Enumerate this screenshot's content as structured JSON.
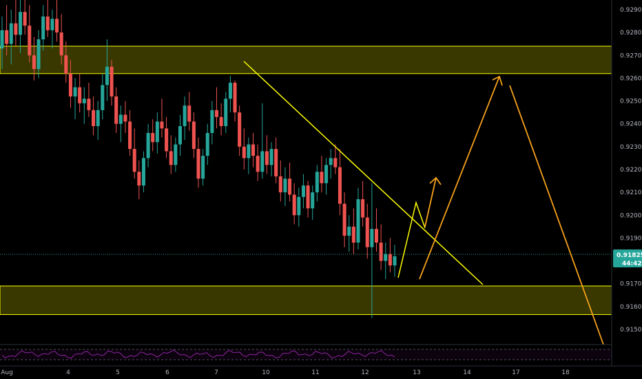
{
  "chart_data": {
    "type": "candlestick",
    "instrument_price_axis": {
      "ticks": [
        "0.92900",
        "0.92800",
        "0.92700",
        "0.92600",
        "0.92500",
        "0.92400",
        "0.92300",
        "0.92200",
        "0.92100",
        "0.92000",
        "0.91900",
        "0.91700",
        "0.91600",
        "0.91500"
      ],
      "tick_values": [
        0.929,
        0.928,
        0.927,
        0.926,
        0.925,
        0.924,
        0.923,
        0.922,
        0.921,
        0.92,
        0.919,
        0.917,
        0.916,
        0.915
      ],
      "range": [
        0.9142,
        0.92965
      ]
    },
    "time_axis": {
      "ticks": [
        "Aug",
        "4",
        "5",
        "6",
        "7",
        "10",
        "11",
        "12",
        "13",
        "14",
        "17",
        "18"
      ]
    },
    "current_price": {
      "label": "0.91825",
      "value": 0.91825,
      "countdown": "44:42",
      "color": "#26a69a"
    },
    "zones": [
      {
        "name": "resistance-zone",
        "top": 0.9274,
        "bottom": 0.9262,
        "color": "#ffff00"
      },
      {
        "name": "support-zone",
        "top": 0.9169,
        "bottom": 0.91565,
        "color": "#ffff00"
      }
    ],
    "colors": {
      "up": "#26a69a",
      "down": "#ef5350",
      "trendline": "#ffff00",
      "projection": "#f7a21b",
      "indicator": "#9c27b0"
    },
    "candles": [
      [
        0.9273,
        0.9287,
        0.9264,
        0.9281
      ],
      [
        0.9281,
        0.9292,
        0.927,
        0.9275
      ],
      [
        0.9275,
        0.929,
        0.9266,
        0.9284
      ],
      [
        0.9284,
        0.9295,
        0.9274,
        0.9279
      ],
      [
        0.9279,
        0.9296,
        0.9271,
        0.9289
      ],
      [
        0.9289,
        0.9297,
        0.9279,
        0.9283
      ],
      [
        0.9283,
        0.9292,
        0.9267,
        0.927
      ],
      [
        0.927,
        0.9278,
        0.9259,
        0.9264
      ],
      [
        0.9264,
        0.9281,
        0.926,
        0.9277
      ],
      [
        0.9277,
        0.9292,
        0.9272,
        0.9287
      ],
      [
        0.9287,
        0.9296,
        0.9278,
        0.9281
      ],
      [
        0.9281,
        0.929,
        0.9273,
        0.9286
      ],
      [
        0.9286,
        0.9297,
        0.9276,
        0.928
      ],
      [
        0.928,
        0.9288,
        0.9266,
        0.927
      ],
      [
        0.927,
        0.9276,
        0.9258,
        0.9262
      ],
      [
        0.9262,
        0.9268,
        0.9247,
        0.9252
      ],
      [
        0.9252,
        0.926,
        0.9242,
        0.9256
      ],
      [
        0.9256,
        0.9262,
        0.9245,
        0.9249
      ],
      [
        0.9249,
        0.9256,
        0.924,
        0.9251
      ],
      [
        0.9251,
        0.9258,
        0.9243,
        0.9246
      ],
      [
        0.9246,
        0.9252,
        0.9235,
        0.9239
      ],
      [
        0.9239,
        0.925,
        0.9233,
        0.9246
      ],
      [
        0.9246,
        0.9262,
        0.9242,
        0.9257
      ],
      [
        0.9257,
        0.9277,
        0.925,
        0.9265
      ],
      [
        0.9265,
        0.9268,
        0.9248,
        0.9252
      ],
      [
        0.9252,
        0.9256,
        0.9236,
        0.924
      ],
      [
        0.924,
        0.9248,
        0.9232,
        0.9244
      ],
      [
        0.9244,
        0.925,
        0.9236,
        0.9241
      ],
      [
        0.9241,
        0.9246,
        0.9226,
        0.9229
      ],
      [
        0.9229,
        0.9238,
        0.9216,
        0.9219
      ],
      [
        0.9219,
        0.9224,
        0.9207,
        0.9213
      ],
      [
        0.9213,
        0.9228,
        0.921,
        0.9225
      ],
      [
        0.9225,
        0.924,
        0.9221,
        0.9236
      ],
      [
        0.9236,
        0.9242,
        0.9228,
        0.9232
      ],
      [
        0.9232,
        0.9245,
        0.9227,
        0.9241
      ],
      [
        0.9241,
        0.9251,
        0.9234,
        0.9238
      ],
      [
        0.9238,
        0.9243,
        0.9225,
        0.9228
      ],
      [
        0.9228,
        0.9235,
        0.9218,
        0.9222
      ],
      [
        0.9222,
        0.9234,
        0.9219,
        0.9231
      ],
      [
        0.9231,
        0.9244,
        0.9226,
        0.9239
      ],
      [
        0.9239,
        0.9252,
        0.9233,
        0.9248
      ],
      [
        0.9248,
        0.9254,
        0.9237,
        0.9241
      ],
      [
        0.9241,
        0.9245,
        0.9225,
        0.9229
      ],
      [
        0.9229,
        0.9234,
        0.9212,
        0.9216
      ],
      [
        0.9216,
        0.9229,
        0.9213,
        0.9226
      ],
      [
        0.9226,
        0.924,
        0.9222,
        0.9236
      ],
      [
        0.9236,
        0.925,
        0.9231,
        0.9246
      ],
      [
        0.9246,
        0.9256,
        0.9238,
        0.9243
      ],
      [
        0.9243,
        0.9249,
        0.9235,
        0.9239
      ],
      [
        0.9239,
        0.9254,
        0.9236,
        0.9251
      ],
      [
        0.9251,
        0.9261,
        0.9245,
        0.9258
      ],
      [
        0.9258,
        0.9259,
        0.9241,
        0.9245
      ],
      [
        0.9245,
        0.9248,
        0.9226,
        0.923
      ],
      [
        0.923,
        0.9238,
        0.922,
        0.9225
      ],
      [
        0.9225,
        0.9234,
        0.9218,
        0.9231
      ],
      [
        0.9231,
        0.9236,
        0.9221,
        0.9226
      ],
      [
        0.9226,
        0.9231,
        0.9215,
        0.9219
      ],
      [
        0.9219,
        0.9249,
        0.9216,
        0.9228
      ],
      [
        0.9228,
        0.9235,
        0.9218,
        0.9222
      ],
      [
        0.9222,
        0.9232,
        0.9217,
        0.9229
      ],
      [
        0.9229,
        0.9234,
        0.9214,
        0.9217
      ],
      [
        0.9217,
        0.9224,
        0.9206,
        0.921
      ],
      [
        0.921,
        0.9221,
        0.9204,
        0.9216
      ],
      [
        0.9216,
        0.9223,
        0.9206,
        0.9209
      ],
      [
        0.9209,
        0.9214,
        0.9196,
        0.92
      ],
      [
        0.92,
        0.9212,
        0.9195,
        0.9208
      ],
      [
        0.9208,
        0.9218,
        0.9203,
        0.9213
      ],
      [
        0.9213,
        0.9215,
        0.9199,
        0.9203
      ],
      [
        0.9203,
        0.9213,
        0.9198,
        0.921
      ],
      [
        0.921,
        0.9222,
        0.9206,
        0.9219
      ],
      [
        0.9219,
        0.9226,
        0.921,
        0.9214
      ],
      [
        0.9214,
        0.9225,
        0.9209,
        0.9222
      ],
      [
        0.9222,
        0.9229,
        0.9216,
        0.9225
      ],
      [
        0.9225,
        0.9231,
        0.9218,
        0.9221
      ],
      [
        0.9221,
        0.9229,
        0.92,
        0.9205
      ],
      [
        0.9205,
        0.921,
        0.9186,
        0.9191
      ],
      [
        0.9191,
        0.92,
        0.9184,
        0.9195
      ],
      [
        0.9195,
        0.9203,
        0.9183,
        0.9188
      ],
      [
        0.9188,
        0.9212,
        0.9185,
        0.9207
      ],
      [
        0.9207,
        0.9215,
        0.9195,
        0.9199
      ],
      [
        0.9199,
        0.9205,
        0.9181,
        0.9186
      ],
      [
        0.9186,
        0.9214,
        0.9155,
        0.9194
      ],
      [
        0.9194,
        0.9203,
        0.9184,
        0.9188
      ],
      [
        0.9188,
        0.9196,
        0.9176,
        0.918
      ],
      [
        0.918,
        0.9188,
        0.9172,
        0.9183
      ],
      [
        0.9183,
        0.919,
        0.9175,
        0.9178
      ],
      [
        0.9178,
        0.9187,
        0.9173,
        0.9182
      ]
    ]
  }
}
